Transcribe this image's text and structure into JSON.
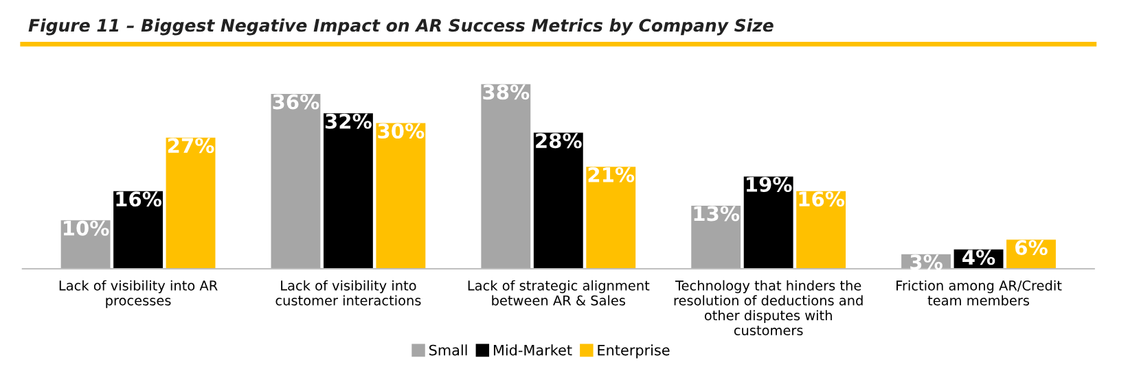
{
  "chart_data": {
    "type": "bar",
    "title": "Figure 11 – Biggest Negative Impact on AR Success Metrics by Company Size",
    "categories": [
      "Lack of visibility into AR\nprocesses",
      "Lack of visibility into\ncustomer interactions",
      "Lack of strategic alignment\nbetween AR & Sales",
      "Technology that hinders the\nresolution of deductions and\nother disputes with\ncustomers",
      "Friction among AR/Credit\nteam members"
    ],
    "series": [
      {
        "name": "Small",
        "color": "#a6a6a6",
        "values": [
          10,
          36,
          38,
          13,
          3
        ],
        "value_labels": [
          "10%",
          "36%",
          "38%",
          "13%",
          "3%"
        ]
      },
      {
        "name": "Mid-Market",
        "color": "#000000",
        "values": [
          16,
          32,
          28,
          19,
          4
        ],
        "value_labels": [
          "16%",
          "32%",
          "28%",
          "19%",
          "4%"
        ]
      },
      {
        "name": "Enterprise",
        "color": "#ffc000",
        "values": [
          27,
          30,
          21,
          16,
          6
        ],
        "value_labels": [
          "27%",
          "30%",
          "21%",
          "16%",
          "6%"
        ]
      }
    ],
    "legend": "bottom",
    "grid": false
  }
}
